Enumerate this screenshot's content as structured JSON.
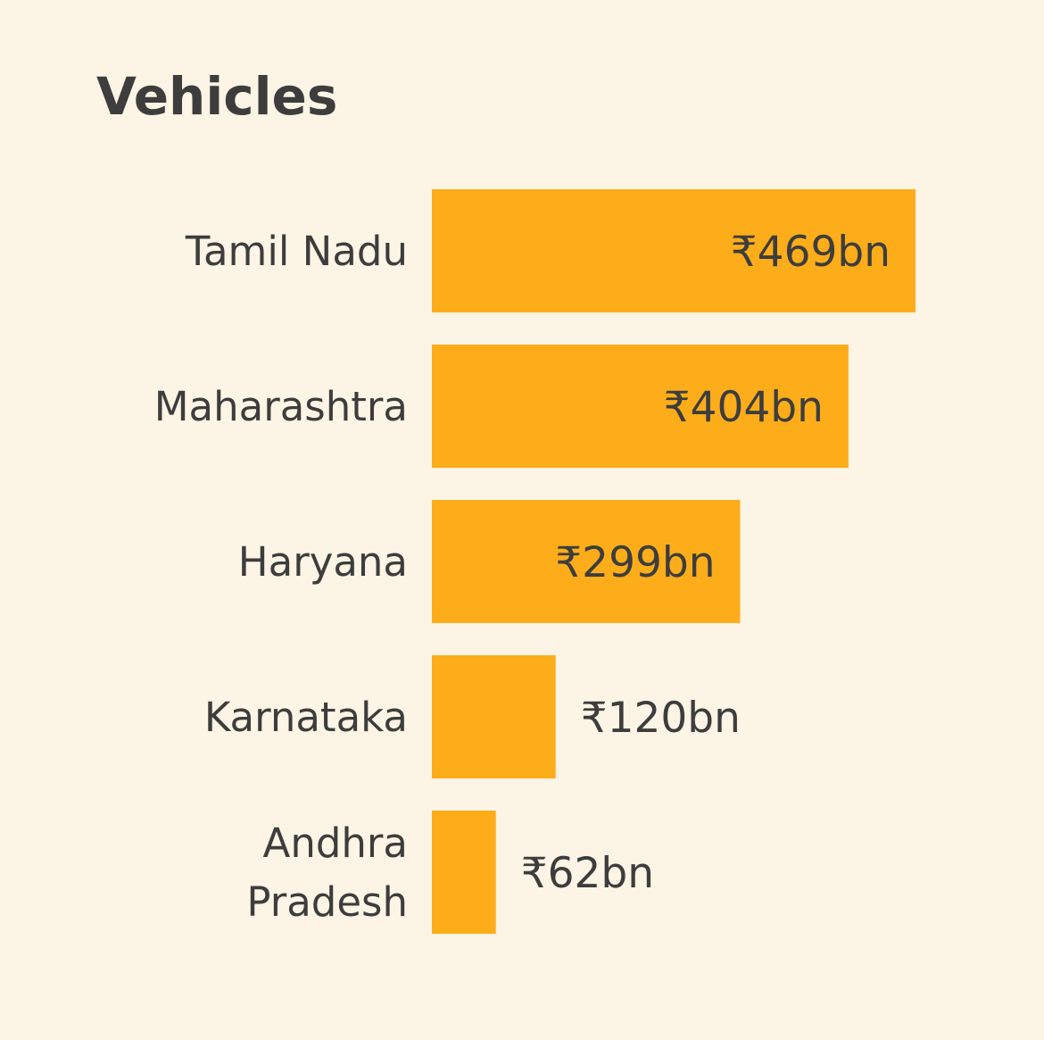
{
  "chart_data": {
    "type": "bar",
    "orientation": "horizontal",
    "title": "Vehicles",
    "categories": [
      "Tamil Nadu",
      "Maharashtra",
      "Haryana",
      "Karnataka",
      "Andhra Pradesh"
    ],
    "values": [
      469,
      404,
      299,
      120,
      62
    ],
    "value_labels": [
      "₹469bn",
      "₹404bn",
      "₹299bn",
      "₹120bn",
      "₹62bn"
    ],
    "unit": "₹bn",
    "xlim": [
      0,
      469
    ],
    "xlabel": "",
    "ylabel": "",
    "grid": false,
    "legend": "none",
    "colors": {
      "background": "#fcf4e4",
      "bar": "#fdad1a",
      "text": "#3d3d3d"
    }
  }
}
